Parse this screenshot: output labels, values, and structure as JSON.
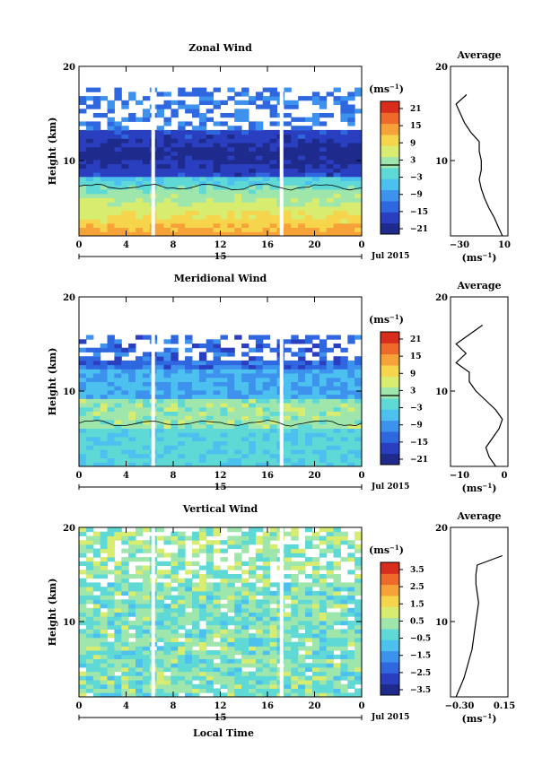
{
  "figure": {
    "xlabel": "Local Time",
    "panels": [
      {
        "title": "Zonal Wind",
        "ylabel": "Height (km)",
        "y_ticks": [
          "10",
          "20"
        ],
        "x_ticks": [
          "0",
          "4",
          "8",
          "12",
          "16",
          "20",
          "0"
        ],
        "day_label": "15",
        "month_label": "Jul 2015",
        "colorbar": {
          "unit": "(ms",
          "unit_sup": "−1",
          "unit_close": ")",
          "labels": [
            "21",
            "15",
            "9",
            "3",
            "−3",
            "−9",
            "−15",
            "−21"
          ],
          "colors": [
            "#1e2a8c",
            "#2a3fc0",
            "#2f67e0",
            "#3d92ee",
            "#4cc0ee",
            "#5ed9d5",
            "#9ee6ab",
            "#d8ec70",
            "#f6d44c",
            "#f6a238",
            "#ee6a2a",
            "#d82c1c"
          ]
        },
        "avg_title": "Average",
        "avg_x_ticks": [
          "−30",
          "10"
        ],
        "avg_unit": "(ms",
        "avg_unit_sup": "−1",
        "avg_unit_close": ")"
      },
      {
        "title": "Meridional Wind",
        "ylabel": "Height (km)",
        "y_ticks": [
          "10",
          "20"
        ],
        "x_ticks": [
          "0",
          "4",
          "8",
          "12",
          "16",
          "20",
          "0"
        ],
        "day_label": "15",
        "month_label": "Jul 2015",
        "colorbar": {
          "unit": "(ms",
          "unit_sup": "−1",
          "unit_close": ")",
          "labels": [
            "21",
            "15",
            "9",
            "3",
            "−3",
            "−9",
            "−15",
            "−21"
          ],
          "colors": [
            "#1e2a8c",
            "#2a3fc0",
            "#2f67e0",
            "#3d92ee",
            "#4cc0ee",
            "#5ed9d5",
            "#9ee6ab",
            "#d8ec70",
            "#f6d44c",
            "#f6a238",
            "#ee6a2a",
            "#d82c1c"
          ]
        },
        "avg_title": "Average",
        "avg_x_ticks": [
          "−10",
          "0"
        ],
        "avg_unit": "(ms",
        "avg_unit_sup": "−1",
        "avg_unit_close": ")"
      },
      {
        "title": "Vertical Wind",
        "ylabel": "Height (km)",
        "y_ticks": [
          "10",
          "20"
        ],
        "x_ticks": [
          "0",
          "4",
          "8",
          "12",
          "16",
          "20",
          "0"
        ],
        "day_label": "15",
        "month_label": "Jul 2015",
        "colorbar": {
          "unit": "(ms",
          "unit_sup": "−1",
          "unit_close": ")",
          "labels": [
            "3.5",
            "2.5",
            "1.5",
            "0.5",
            "−0.5",
            "−1.5",
            "−2.5",
            "−3.5"
          ],
          "colors": [
            "#1e2a8c",
            "#2a3fc0",
            "#2f67e0",
            "#3d92ee",
            "#4cc0ee",
            "#5ed9d5",
            "#9ee6ab",
            "#d8ec70",
            "#f6d44c",
            "#f6a238",
            "#ee6a2a",
            "#d82c1c"
          ]
        },
        "avg_title": "Average",
        "avg_x_ticks": [
          "−0.30",
          "0.15"
        ],
        "avg_unit": "(ms",
        "avg_unit_sup": "−1",
        "avg_unit_close": ")"
      }
    ]
  },
  "chart_data": [
    {
      "type": "heatmap",
      "title": "Zonal Wind",
      "xlabel": "",
      "ylabel": "Height (km)",
      "x_range_hours": [
        0,
        24
      ],
      "y_range_km": [
        2,
        20
      ],
      "color_range": [
        -24,
        24
      ],
      "contour_level": 0,
      "data_gaps_hours": [
        6.3,
        17.2
      ],
      "profile_heights_km": [
        2,
        3,
        4,
        5,
        6,
        7,
        8,
        9,
        10,
        11,
        12,
        13,
        14,
        15,
        16,
        17
      ],
      "profile_values": [
        14,
        10,
        6,
        1,
        -3,
        -6,
        -8,
        -6,
        -6,
        -8,
        -8,
        -16,
        -22,
        -26,
        -30,
        -20
      ]
    },
    {
      "type": "heatmap",
      "title": "Meridional Wind",
      "xlabel": "",
      "ylabel": "Height (km)",
      "x_range_hours": [
        0,
        24
      ],
      "y_range_km": [
        2,
        20
      ],
      "color_range": [
        -24,
        24
      ],
      "contour_level": 0,
      "data_gaps_hours": [
        6.3,
        17.2
      ],
      "profile_heights_km": [
        2,
        3,
        4,
        5,
        6,
        7,
        8,
        9,
        10,
        11,
        12,
        13,
        14,
        15,
        16,
        17
      ],
      "profile_values": [
        0,
        -2,
        -3,
        -1,
        1,
        2,
        0,
        -3,
        -6,
        -8,
        -8,
        -12,
        -9,
        -12,
        -8,
        -4
      ]
    },
    {
      "type": "heatmap",
      "title": "Vertical Wind",
      "xlabel": "Local Time",
      "ylabel": "Height (km)",
      "x_range_hours": [
        0,
        24
      ],
      "y_range_km": [
        2,
        20
      ],
      "color_range": [
        -4,
        4
      ],
      "data_gaps_hours": [
        6.3,
        17.2
      ],
      "profile_heights_km": [
        2,
        3,
        4,
        5,
        6,
        7,
        8,
        9,
        10,
        11,
        12,
        13,
        14,
        15,
        16,
        17
      ],
      "profile_values": [
        -0.2,
        -0.17,
        -0.14,
        -0.12,
        -0.1,
        -0.08,
        -0.07,
        -0.06,
        -0.05,
        -0.04,
        -0.03,
        -0.04,
        -0.05,
        -0.05,
        -0.04,
        0.15
      ]
    }
  ]
}
